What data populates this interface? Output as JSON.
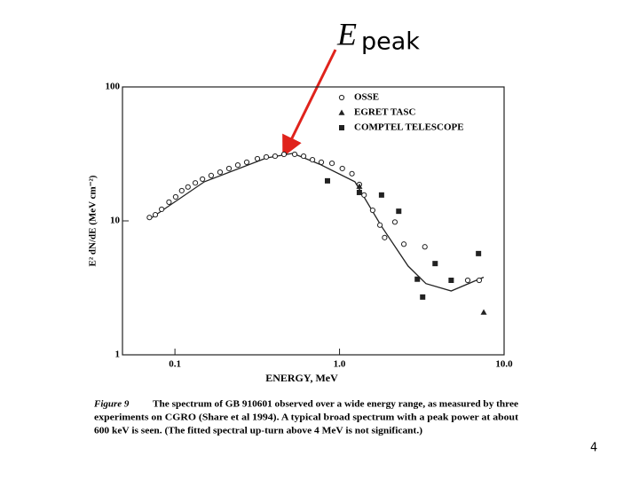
{
  "chart_data": {
    "type": "scatter",
    "annotation": {
      "symbol": "E",
      "subscript": "peak"
    },
    "xlabel": "ENERGY, MeV",
    "ylabel": "E² dN/dE (MeV cm⁻²)",
    "xlog": true,
    "ylog": true,
    "xlim": [
      0.048,
      10
    ],
    "ylim": [
      1,
      100
    ],
    "xticks": [
      0.1,
      {
        "value": 1,
        "label": "1.0"
      },
      {
        "value": 10,
        "label": "10.0"
      }
    ],
    "yticks": [
      1,
      10,
      100
    ],
    "legend": "top-right",
    "series": [
      {
        "name": "OSSE",
        "marker": "circle",
        "color": "#222222",
        "x": [
          0.07,
          0.076,
          0.083,
          0.092,
          0.101,
          0.11,
          0.12,
          0.133,
          0.147,
          0.166,
          0.188,
          0.213,
          0.241,
          0.273,
          0.317,
          0.359,
          0.406,
          0.46,
          0.534,
          0.605,
          0.685,
          0.775,
          0.9,
          1.04,
          1.19,
          1.32,
          1.41,
          1.59,
          1.76,
          1.88,
          2.17,
          2.46,
          3.3,
          6.01,
          7.06
        ],
        "values": [
          10.6,
          11.1,
          12.2,
          13.8,
          15.1,
          16.8,
          17.9,
          19.2,
          20.5,
          21.8,
          23.1,
          24.6,
          26.1,
          27.4,
          29.1,
          30.0,
          30.4,
          31.4,
          31.4,
          30.4,
          28.6,
          27.4,
          26.9,
          24.6,
          22.5,
          18.7,
          15.6,
          12.0,
          9.3,
          7.5,
          9.8,
          6.7,
          6.4,
          3.6,
          3.6
        ]
      },
      {
        "name": "EGRET TASC",
        "marker": "triangle",
        "color": "#222222",
        "x": [
          1.32,
          7.52
        ],
        "values": [
          18.1,
          2.08
        ]
      },
      {
        "name": "COMPTEL TELESCOPE",
        "marker": "square",
        "color": "#222222",
        "x": [
          0.845,
          1.32,
          1.8,
          2.29,
          2.97,
          3.2,
          3.81,
          4.77,
          6.99
        ],
        "values": [
          19.9,
          16.3,
          15.6,
          11.8,
          3.67,
          2.7,
          4.8,
          3.6,
          5.7
        ]
      }
    ],
    "fit": {
      "color": "#222222",
      "x": [
        0.07,
        0.151,
        0.359,
        0.52,
        0.757,
        1.24,
        1.8,
        2.61,
        3.35,
        4.77,
        7.52
      ],
      "values": [
        10.3,
        19.6,
        29.5,
        31.9,
        26.5,
        19.6,
        9.1,
        4.6,
        3.4,
        3.0,
        3.8
      ]
    },
    "caption": {
      "label": "Figure 9",
      "lines": [
        "The spectrum of GB 910601 observed over a wide energy range, as measured by three",
        "experiments on CGRO (Share et al 1994).  A typical broad spectrum with a peak power at about",
        "600 keV is seen.  (The fitted spectral up-turn above 4 MeV is not significant.)"
      ]
    },
    "page_number": "4"
  }
}
